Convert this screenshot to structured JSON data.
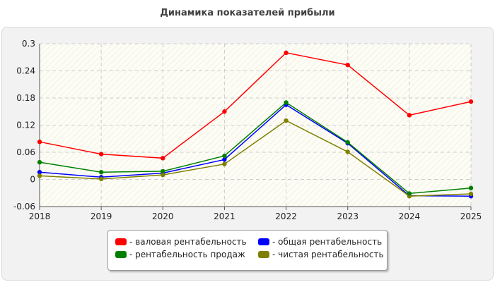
{
  "chart_data": {
    "type": "line",
    "title": "Динамика показателей прибыли",
    "xlabel": "",
    "ylabel": "",
    "categories": [
      "2018",
      "2019",
      "2020",
      "2021",
      "2022",
      "2023",
      "2024",
      "2025"
    ],
    "ylim": [
      -0.06,
      0.3
    ],
    "yticks": [
      "0.3",
      "0.24",
      "0.18",
      "0.12",
      "0.06",
      "0",
      "-0.06"
    ],
    "ytick_values": [
      0.3,
      0.24,
      0.18,
      0.12,
      0.06,
      0,
      -0.06
    ],
    "grid": true,
    "legend_position": "bottom",
    "series": [
      {
        "name": "- валовая рентабельность",
        "color": "#ff0000",
        "values": [
          0.083,
          0.056,
          0.047,
          0.15,
          0.28,
          0.253,
          0.142,
          0.172
        ]
      },
      {
        "name": "- общая рентабельность",
        "color": "#0000ff",
        "values": [
          0.016,
          0.005,
          0.014,
          0.044,
          0.165,
          0.08,
          -0.036,
          -0.037
        ]
      },
      {
        "name": "- рентабельность продаж",
        "color": "#008000",
        "values": [
          0.038,
          0.016,
          0.018,
          0.052,
          0.17,
          0.082,
          -0.031,
          -0.019
        ]
      },
      {
        "name": "- чистая рентабельность",
        "color": "#808000",
        "values": [
          0.008,
          0.001,
          0.01,
          0.034,
          0.13,
          0.061,
          -0.037,
          -0.032
        ]
      }
    ]
  }
}
